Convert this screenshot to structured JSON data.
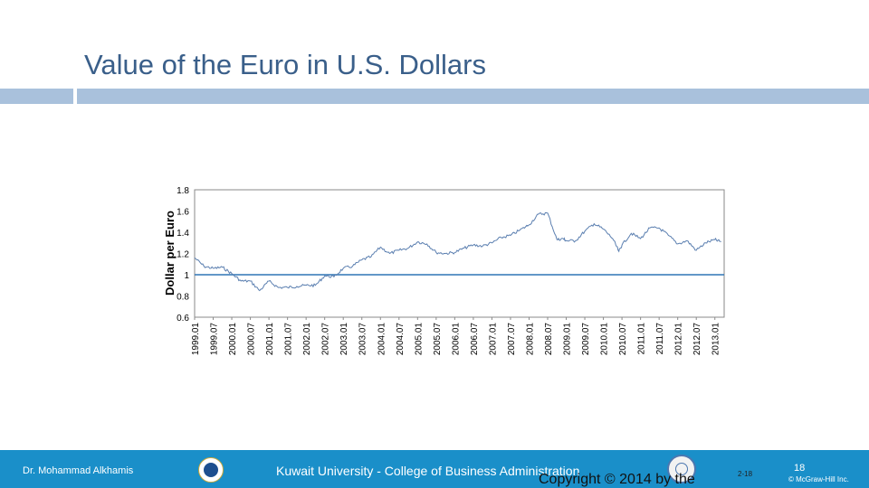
{
  "slide": {
    "title": "Value of the Euro in U.S. Dollars"
  },
  "footer": {
    "author": "Dr. Mohammad Alkhamis",
    "university": "Kuwait University - College of Business Administration",
    "copyright": "Copyright © 2014 by the",
    "page_code": "2-18",
    "page_number": "18",
    "publisher": "© McGraw-Hill Inc."
  },
  "colors": {
    "title": "#3a5f8a",
    "rule": "#a9c1dc",
    "footer_bar": "#1a8fc9",
    "series_line": "#5b7fb0",
    "parity_line": "#2e75b6"
  },
  "chart_data": {
    "type": "line",
    "title": "",
    "xlabel": "",
    "ylabel": "Dollar per Euro",
    "ylim": [
      0.6,
      1.8
    ],
    "yticks": [
      "0.6",
      "0.8",
      "1",
      "1.2",
      "1.4",
      "1.6",
      "1.8"
    ],
    "x_tick_labels": [
      "1999.01",
      "1999.07",
      "2000.01",
      "2000.07",
      "2001.01",
      "2001.07",
      "2002.01",
      "2002.07",
      "2003.01",
      "2003.07",
      "2004.01",
      "2004.07",
      "2005.01",
      "2005.07",
      "2006.01",
      "2006.07",
      "2007.01",
      "2007.07",
      "2008.01",
      "2008.07",
      "2009.01",
      "2009.07",
      "2010.01",
      "2010.07",
      "2011.01",
      "2011.07",
      "2012.01",
      "2012.07",
      "2013.01"
    ],
    "grid": false,
    "legend": "none",
    "reference_line": {
      "y": 1.0
    },
    "series": [
      {
        "x": [
          "1999.01",
          "1999.04",
          "1999.07",
          "1999.10",
          "2000.01",
          "2000.04",
          "2000.07",
          "2000.10",
          "2001.01",
          "2001.04",
          "2001.07",
          "2001.10",
          "2002.01",
          "2002.04",
          "2002.07",
          "2002.10",
          "2003.01",
          "2003.04",
          "2003.07",
          "2003.10",
          "2004.01",
          "2004.04",
          "2004.07",
          "2004.10",
          "2005.01",
          "2005.04",
          "2005.07",
          "2005.10",
          "2006.01",
          "2006.04",
          "2006.07",
          "2006.10",
          "2007.01",
          "2007.04",
          "2007.07",
          "2007.10",
          "2008.01",
          "2008.04",
          "2008.07",
          "2008.10",
          "2008.12",
          "2009.01",
          "2009.04",
          "2009.07",
          "2009.10",
          "2010.01",
          "2010.04",
          "2010.06",
          "2010.07",
          "2010.10",
          "2011.01",
          "2011.04",
          "2011.07",
          "2011.10",
          "2012.01",
          "2012.04",
          "2012.07",
          "2012.10",
          "2013.01",
          "2013.03"
        ],
        "values": [
          1.16,
          1.08,
          1.06,
          1.07,
          1.01,
          0.94,
          0.94,
          0.85,
          0.94,
          0.88,
          0.88,
          0.89,
          0.9,
          0.9,
          0.99,
          0.98,
          1.06,
          1.08,
          1.14,
          1.17,
          1.26,
          1.2,
          1.23,
          1.25,
          1.31,
          1.29,
          1.21,
          1.2,
          1.21,
          1.25,
          1.28,
          1.27,
          1.3,
          1.35,
          1.37,
          1.42,
          1.47,
          1.57,
          1.58,
          1.33,
          1.34,
          1.32,
          1.32,
          1.41,
          1.48,
          1.43,
          1.34,
          1.22,
          1.28,
          1.39,
          1.34,
          1.44,
          1.44,
          1.37,
          1.29,
          1.32,
          1.23,
          1.3,
          1.33,
          1.31
        ]
      }
    ]
  }
}
